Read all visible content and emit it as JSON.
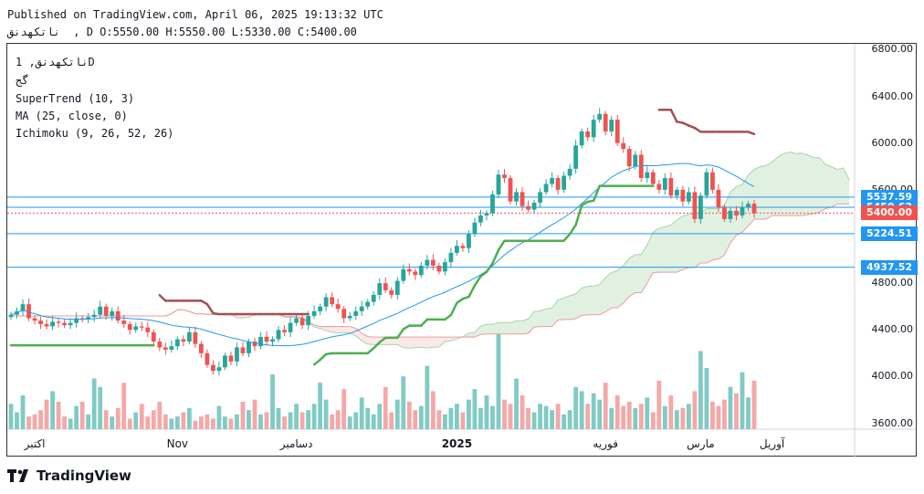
{
  "header": {
    "published": "Published on TradingView.com, April 06, 2025 19:13:32 UTC",
    "ohlc": "ناتکهدنق  , D O:5550.00 H:5550.00 L:5330.00 C:5400.00"
  },
  "legend": {
    "symbol": "ناتکهدنق, 1D",
    "symbol_sub": "گج",
    "supertrend": "SuperTrend (10, 3)",
    "ma": "MA (25, close, 0)",
    "ichimoku": "Ichimoku (9, 26, 52, 26)"
  },
  "brand": {
    "name": "TradingView",
    "icon": "tradingview-logo-icon"
  },
  "colors": {
    "up": "#26a69a",
    "down": "#ef5350",
    "supertrend_up": "#4caf50",
    "supertrend_down": "#a34f53",
    "ma": "#2196f3",
    "cloud_green": "#c8e6c9",
    "cloud_red": "#f8d7d7",
    "hline": "#2196f3",
    "last_price": "#ef5350"
  },
  "chart_data": {
    "type": "candlestick",
    "y_axis": {
      "min": 3550,
      "max": 6850,
      "ticks": [
        3600,
        4000,
        4400,
        4800,
        5200,
        5600,
        6000,
        6400,
        6800
      ],
      "tick_labels": [
        "3600.00",
        "4000.00",
        "4400.00",
        "4800.00",
        "5200.00",
        "5600.00",
        "6000.00",
        "6400.00",
        "6800.00"
      ]
    },
    "x_labels": [
      "اکتبر",
      "Nov",
      "دسامبر",
      "2025",
      "فوریه",
      "مارس",
      "آوریل"
    ],
    "price_levels": [
      {
        "value": 5537.59,
        "label": "5537.59",
        "color": "#2196f3"
      },
      {
        "value": 5450.62,
        "label": "5450.62",
        "color": "#2196f3"
      },
      {
        "value": 5400.0,
        "label": "5400.00",
        "color": "#ef5350"
      },
      {
        "value": 5224.51,
        "label": "5224.51",
        "color": "#2196f3"
      },
      {
        "value": 4937.52,
        "label": "4937.52",
        "color": "#2196f3"
      }
    ],
    "close": [
      4530,
      4560,
      4620,
      4500,
      4480,
      4450,
      4430,
      4470,
      4460,
      4440,
      4460,
      4500,
      4490,
      4510,
      4530,
      4600,
      4520,
      4560,
      4480,
      4450,
      4400,
      4430,
      4420,
      4380,
      4300,
      4250,
      4230,
      4260,
      4320,
      4300,
      4380,
      4280,
      4200,
      4100,
      4050,
      4080,
      4180,
      4130,
      4250,
      4200,
      4300,
      4260,
      4340,
      4300,
      4320,
      4400,
      4380,
      4460,
      4500,
      4440,
      4520,
      4560,
      4600,
      4680,
      4620,
      4580,
      4500,
      4520,
      4560,
      4600,
      4640,
      4700,
      4800,
      4740,
      4700,
      4820,
      4920,
      4900,
      4870,
      4950,
      5000,
      4950,
      4900,
      4980,
      5060,
      5120,
      5100,
      5220,
      5320,
      5380,
      5400,
      5560,
      5730,
      5700,
      5500,
      5580,
      5460,
      5430,
      5490,
      5580,
      5650,
      5700,
      5600,
      5720,
      5780,
      5980,
      6100,
      6050,
      6200,
      6250,
      6100,
      6200,
      6000,
      5950,
      5800,
      5900,
      5700,
      5750,
      5650,
      5600,
      5700,
      5550,
      5600,
      5500,
      5580,
      5350,
      5550,
      5750,
      5600,
      5450,
      5350,
      5420,
      5380,
      5450,
      5480,
      5400
    ],
    "volume": [
      1.2,
      0.8,
      1.6,
      0.6,
      0.7,
      0.9,
      1.4,
      1.8,
      1.3,
      0.6,
      0.5,
      1.1,
      1.3,
      0.7,
      2.4,
      2.0,
      0.9,
      0.6,
      1.0,
      2.2,
      0.5,
      0.8,
      1.2,
      0.6,
      0.9,
      1.3,
      0.7,
      0.5,
      0.6,
      0.8,
      1.0,
      0.4,
      0.6,
      0.7,
      0.5,
      1.1,
      0.6,
      0.5,
      0.7,
      1.3,
      0.9,
      1.4,
      0.7,
      0.8,
      2.6,
      1.0,
      0.6,
      0.8,
      1.2,
      0.8,
      0.9,
      1.2,
      2.2,
      1.4,
      0.7,
      0.9,
      1.9,
      0.6,
      0.8,
      1.5,
      1.0,
      0.7,
      1.2,
      2.0,
      0.8,
      1.4,
      2.5,
      1.3,
      0.9,
      1.1,
      3.0,
      1.8,
      0.9,
      0.7,
      1.0,
      1.2,
      0.8,
      1.4,
      1.9,
      1.0,
      1.6,
      1.1,
      4.5,
      1.4,
      1.2,
      2.4,
      1.6,
      1.0,
      0.8,
      1.2,
      1.1,
      0.9,
      1.2,
      0.7,
      0.9,
      2.0,
      1.8,
      1.2,
      1.7,
      1.4,
      2.2,
      1.0,
      1.6,
      1.1,
      1.3,
      1.0,
      1.2,
      1.5,
      0.8,
      2.3,
      1.1,
      1.6,
      0.9,
      1.0,
      1.2,
      1.8,
      3.7,
      2.9,
      1.3,
      1.1,
      1.4,
      2.0,
      1.7,
      2.7,
      1.5,
      2.3
    ]
  }
}
